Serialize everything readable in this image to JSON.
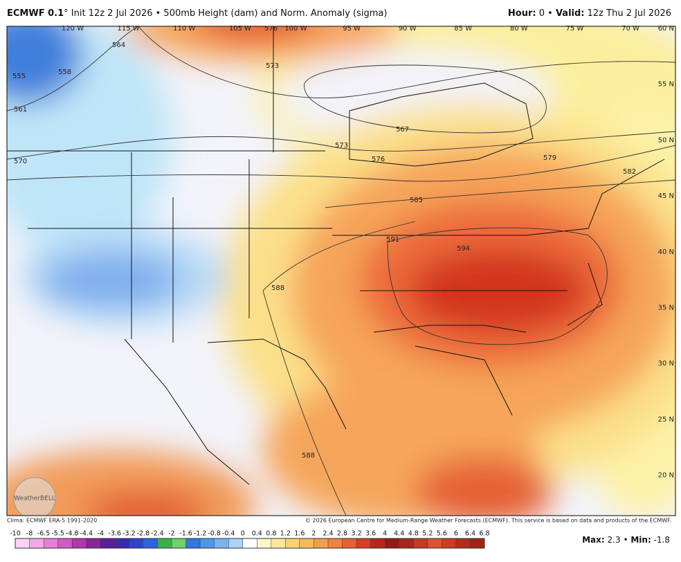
{
  "header": {
    "model": "ECMWF 0.1",
    "description": "° Init 12z 2 Jul 2026 • 500mb Height (dam) and Norm. Anomaly (sigma)",
    "hour_label": "Hour:",
    "hour": 0,
    "separator": "•",
    "valid_label": "Valid:",
    "valid": "12z Thu 2 Jul 2026"
  },
  "map": {
    "longitudes": [
      "120 W",
      "115 W",
      "110 W",
      "105 W",
      "100 W",
      "95 W",
      "90 W",
      "85 W",
      "80 W",
      "75 W",
      "70 W"
    ],
    "latitudes": [
      "60 N",
      "55 N",
      "50 N",
      "45 N",
      "40 N",
      "35 N",
      "30 N",
      "25 N",
      "20 N"
    ],
    "contour_labels": [
      576,
      573,
      564,
      555,
      558,
      561,
      570,
      567,
      573,
      576,
      579,
      582,
      585,
      591,
      594,
      588,
      588
    ],
    "logo": "WeatherBELL"
  },
  "footer": {
    "climo": "Clima: ECMWF ERA-5 1991-2020",
    "copyright": "© 2026 European Centre for Medium-Range Weather Forecasts (ECMWF). This service is based on data and products of the ECMWF."
  },
  "colorbar": {
    "ticks": [
      -10,
      -8,
      -6.5,
      -5.5,
      -4.8,
      -4.4,
      -4,
      -3.6,
      -3.2,
      -2.8,
      -2.4,
      -2,
      -1.6,
      -1.2,
      -0.8,
      -0.4,
      0,
      0.4,
      0.8,
      1.2,
      1.6,
      2,
      2.4,
      2.8,
      3.2,
      3.6,
      4,
      4.4,
      4.8,
      5.2,
      5.6,
      6,
      6.4,
      6.8
    ],
    "colors": [
      "#fbd3f3",
      "#f3a9e6",
      "#e77fd6",
      "#d458c4",
      "#b136ad",
      "#8a2399",
      "#5d1e99",
      "#3a2bad",
      "#2f44c8",
      "#2d63dc",
      "#37b24a",
      "#6fd167",
      "#2a7ae0",
      "#4d96ea",
      "#78b4f2",
      "#a9d3f7",
      "#ffffff",
      "#fff6c6",
      "#fde89a",
      "#fbd372",
      "#f9b957",
      "#f59e4a",
      "#f0813e",
      "#e65f32",
      "#d43d26",
      "#b8261b",
      "#951a14",
      "#a52a1e",
      "#c43a24",
      "#d85530",
      "#cf3a24",
      "#b32c1c",
      "#a02518"
    ]
  },
  "stats": {
    "max_label": "Max:",
    "max": 2.3,
    "separator": "•",
    "min_label": "Min:",
    "min": -1.8
  }
}
